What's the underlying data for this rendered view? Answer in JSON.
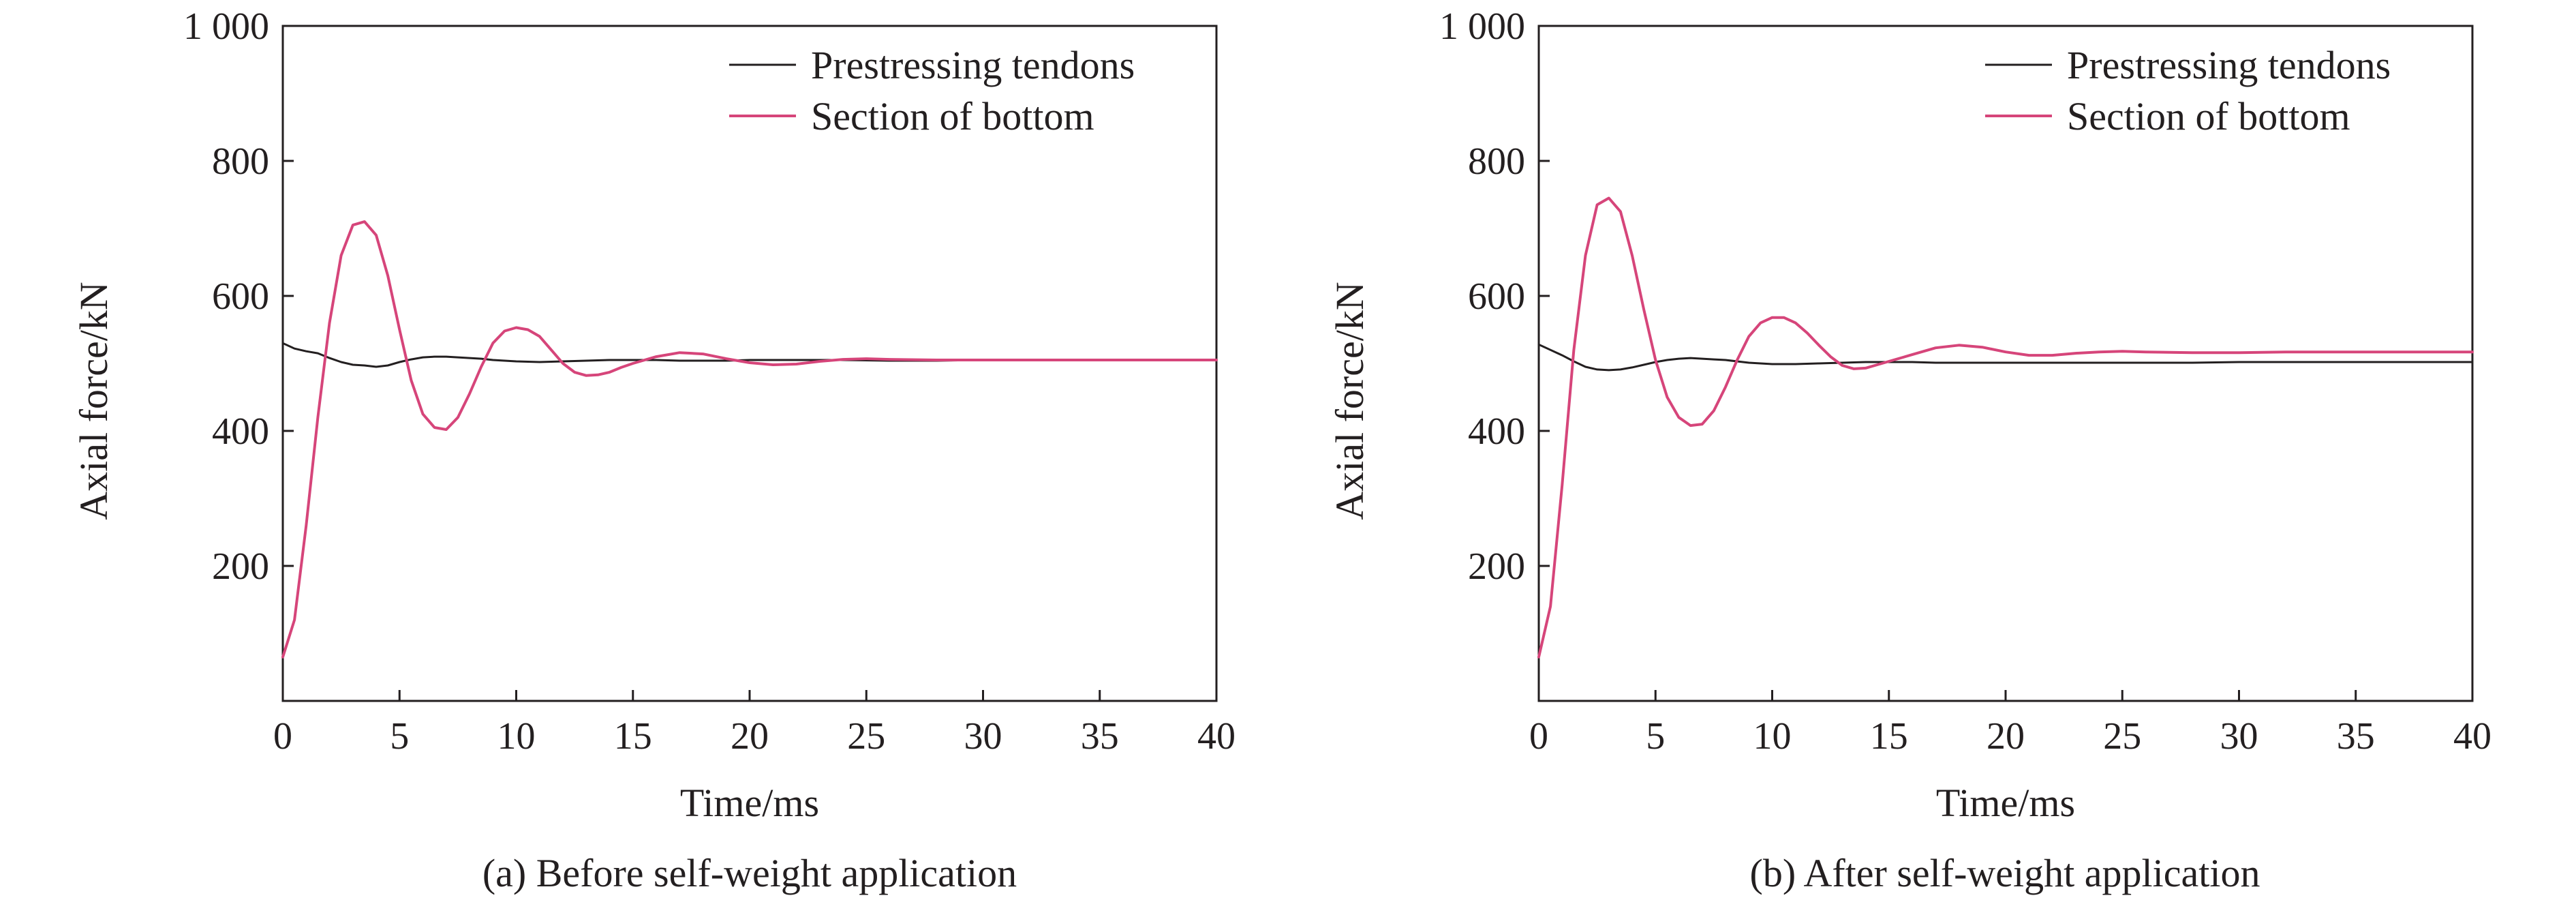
{
  "chart_data": [
    {
      "type": "line",
      "caption": "(a) Before self-weight application",
      "xlabel": "Time/ms",
      "ylabel": "Axial force/kN",
      "xlim": [
        0,
        40
      ],
      "ylim": [
        0,
        1000
      ],
      "xticks": [
        0,
        5,
        10,
        15,
        20,
        25,
        30,
        35,
        40
      ],
      "xtick_labels": [
        "0",
        "5",
        "10",
        "15",
        "20",
        "25",
        "30",
        "35",
        "40"
      ],
      "yticks": [
        200,
        400,
        600,
        800,
        1000
      ],
      "ytick_labels": [
        "200",
        "400",
        "600",
        "800",
        "1 000"
      ],
      "legend_position": "top-right",
      "series": [
        {
          "name": "Prestressing tendons",
          "color": "#231f20",
          "x": [
            0,
            0.5,
            1,
            1.5,
            2,
            2.5,
            3,
            3.5,
            4,
            4.5,
            5,
            5.5,
            6,
            6.5,
            7,
            7.5,
            8,
            8.5,
            9,
            10,
            11,
            12,
            13,
            14,
            15,
            16,
            17,
            18,
            19,
            20,
            22,
            24,
            26,
            28,
            30,
            32,
            34,
            36,
            38,
            40
          ],
          "y": [
            530,
            522,
            518,
            515,
            508,
            502,
            498,
            497,
            495,
            497,
            502,
            506,
            509,
            510,
            510,
            509,
            508,
            507,
            505,
            503,
            502,
            503,
            504,
            505,
            505,
            505,
            504,
            504,
            504,
            505,
            505,
            505,
            504,
            504,
            505,
            505,
            505,
            505,
            505,
            505
          ]
        },
        {
          "name": "Section of bottom",
          "color": "#d6457a",
          "x": [
            0,
            0.5,
            1,
            1.5,
            2,
            2.5,
            3,
            3.5,
            4,
            4.5,
            5,
            5.5,
            6,
            6.5,
            7,
            7.5,
            8,
            8.5,
            9,
            9.5,
            10,
            10.5,
            11,
            11.5,
            12,
            12.5,
            13,
            13.5,
            14,
            14.5,
            15,
            16,
            17,
            18,
            19,
            20,
            21,
            22,
            23,
            24,
            25,
            26,
            28,
            30,
            32,
            34,
            36,
            38,
            40
          ],
          "y": [
            65,
            120,
            260,
            420,
            560,
            660,
            705,
            710,
            690,
            630,
            550,
            475,
            425,
            405,
            402,
            420,
            455,
            495,
            530,
            548,
            553,
            550,
            540,
            520,
            500,
            487,
            482,
            483,
            487,
            494,
            500,
            510,
            516,
            514,
            507,
            501,
            498,
            499,
            503,
            506,
            507,
            506,
            505,
            505,
            505,
            505,
            505,
            505,
            505
          ]
        }
      ]
    },
    {
      "type": "line",
      "caption": "(b) After self-weight application",
      "xlabel": "Time/ms",
      "ylabel": "Axial force/kN",
      "xlim": [
        0,
        40
      ],
      "ylim": [
        0,
        1000
      ],
      "xticks": [
        0,
        5,
        10,
        15,
        20,
        25,
        30,
        35,
        40
      ],
      "xtick_labels": [
        "0",
        "5",
        "10",
        "15",
        "20",
        "25",
        "30",
        "35",
        "40"
      ],
      "yticks": [
        200,
        400,
        600,
        800,
        1000
      ],
      "ytick_labels": [
        "200",
        "400",
        "600",
        "800",
        "1 000"
      ],
      "legend_position": "top-right",
      "series": [
        {
          "name": "Prestressing tendons",
          "color": "#231f20",
          "x": [
            0,
            0.5,
            1,
            1.5,
            2,
            2.5,
            3,
            3.5,
            4,
            4.5,
            5,
            5.5,
            6,
            6.5,
            7,
            7.5,
            8,
            8.5,
            9,
            10,
            11,
            12,
            13,
            14,
            15,
            16,
            17,
            18,
            19,
            20,
            22,
            24,
            26,
            28,
            30,
            32,
            34,
            36,
            38,
            40
          ],
          "y": [
            528,
            520,
            512,
            503,
            495,
            491,
            490,
            491,
            494,
            498,
            502,
            505,
            507,
            508,
            507,
            506,
            505,
            503,
            501,
            499,
            499,
            500,
            501,
            502,
            502,
            502,
            501,
            501,
            501,
            501,
            501,
            501,
            501,
            501,
            502,
            502,
            502,
            502,
            502,
            502
          ]
        },
        {
          "name": "Section of bottom",
          "color": "#d6457a",
          "x": [
            0,
            0.5,
            1,
            1.5,
            2,
            2.5,
            3,
            3.5,
            4,
            4.5,
            5,
            5.5,
            6,
            6.5,
            7,
            7.5,
            8,
            8.5,
            9,
            9.5,
            10,
            10.5,
            11,
            11.5,
            12,
            12.5,
            13,
            13.5,
            14,
            14.5,
            15,
            16,
            17,
            18,
            19,
            20,
            21,
            22,
            23,
            24,
            25,
            26,
            28,
            30,
            32,
            34,
            36,
            38,
            40
          ],
          "y": [
            65,
            140,
            320,
            520,
            660,
            735,
            745,
            725,
            660,
            580,
            505,
            450,
            420,
            408,
            410,
            430,
            465,
            505,
            540,
            560,
            568,
            568,
            560,
            545,
            527,
            510,
            497,
            492,
            493,
            498,
            503,
            513,
            523,
            527,
            524,
            517,
            512,
            512,
            515,
            517,
            518,
            517,
            516,
            516,
            517,
            517,
            517,
            517,
            517
          ]
        }
      ]
    }
  ]
}
